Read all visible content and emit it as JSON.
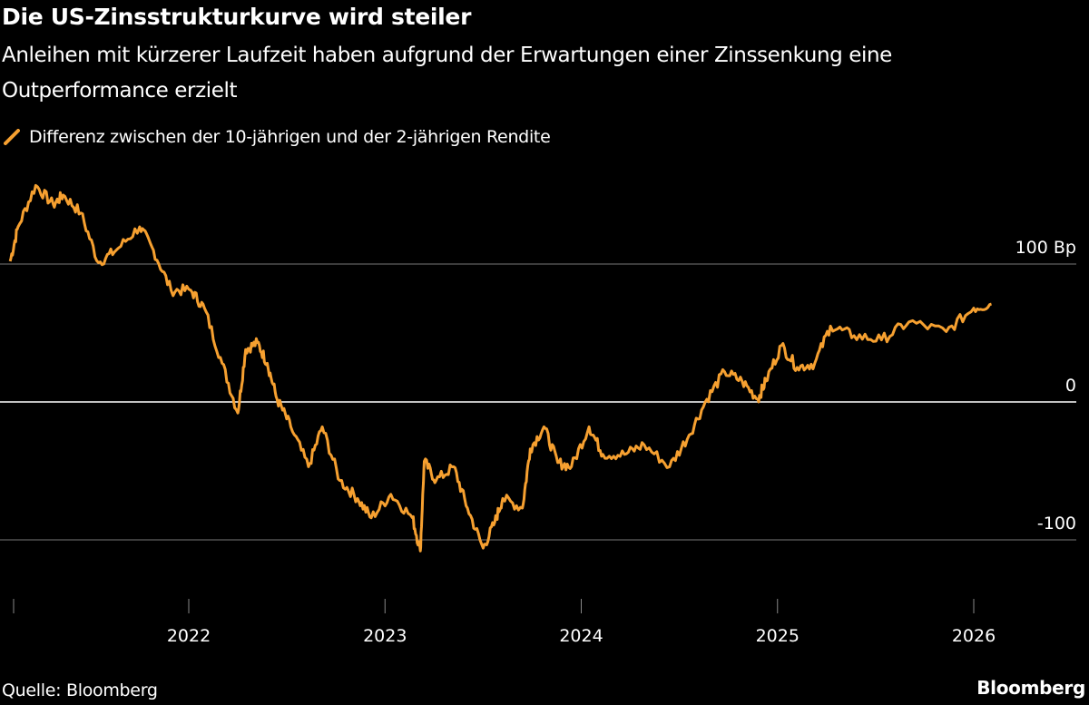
{
  "chart_data": {
    "type": "line",
    "title": "Die US-Zinsstrukturkurve wird steiler",
    "subtitle": "Anleihen mit kürzerer Laufzeit haben aufgrund der Erwartungen einer Zinssenkung eine Outperformance erzielt",
    "legend": [
      {
        "name": "Differenz zwischen der 10-jährigen und der 2-jährigen Rendite",
        "color": "#f6a030"
      }
    ],
    "ylabel": "Bp",
    "y_ticks": [
      {
        "value": 100,
        "label": "100 Bp"
      },
      {
        "value": 0,
        "label": "0"
      },
      {
        "value": -100,
        "label": "-100"
      }
    ],
    "ylim": [
      -150,
      165
    ],
    "x_ticks": [
      {
        "value": 2022,
        "label": "2022"
      },
      {
        "value": 2023,
        "label": "2023"
      },
      {
        "value": 2024,
        "label": "2024"
      },
      {
        "value": 2025,
        "label": "2025"
      },
      {
        "value": 2026,
        "label": "2026"
      }
    ],
    "xlim": [
      2021.04,
      2026.48
    ],
    "grid": true,
    "series": [
      {
        "name": "Differenz zwischen der 10-jährigen und der 2-jährigen Rendite",
        "x": [
          2021.09,
          2021.13,
          2021.22,
          2021.31,
          2021.36,
          2021.45,
          2021.54,
          2021.63,
          2021.75,
          2021.82,
          2021.91,
          2022.01,
          2022.08,
          2022.17,
          2022.25,
          2022.29,
          2022.35,
          2022.4,
          2022.45,
          2022.52,
          2022.61,
          2022.68,
          2022.77,
          2022.86,
          2022.93,
          2023.03,
          2023.14,
          2023.18,
          2023.2,
          2023.26,
          2023.35,
          2023.42,
          2023.5,
          2023.56,
          2023.6,
          2023.7,
          2023.74,
          2023.81,
          2023.88,
          2023.95,
          2024.04,
          2024.11,
          2024.22,
          2024.32,
          2024.45,
          2024.55,
          2024.64,
          2024.73,
          2024.82,
          2024.9,
          2024.94,
          2025.02,
          2025.1,
          2025.19,
          2025.27,
          2025.39,
          2025.53,
          2025.67,
          2025.86,
          2026.0,
          2026.09
        ],
        "y": [
          102,
          127,
          157,
          143,
          150,
          137,
          101,
          110,
          127,
          110,
          81,
          81,
          68,
          28,
          -8,
          38,
          43,
          28,
          2,
          -18,
          -47,
          -18,
          -57,
          -70,
          -84,
          -67,
          -84,
          -108,
          -43,
          -57,
          -47,
          -77,
          -106,
          -87,
          -70,
          -77,
          -34,
          -18,
          -44,
          -47,
          -18,
          -38,
          -38,
          -31,
          -47,
          -24,
          2,
          22,
          15,
          2,
          15,
          41,
          25,
          28,
          55,
          48,
          45,
          58,
          51,
          68,
          71
        ]
      }
    ]
  },
  "footer": {
    "source": "Quelle: Bloomberg",
    "brand": "Bloomberg"
  }
}
